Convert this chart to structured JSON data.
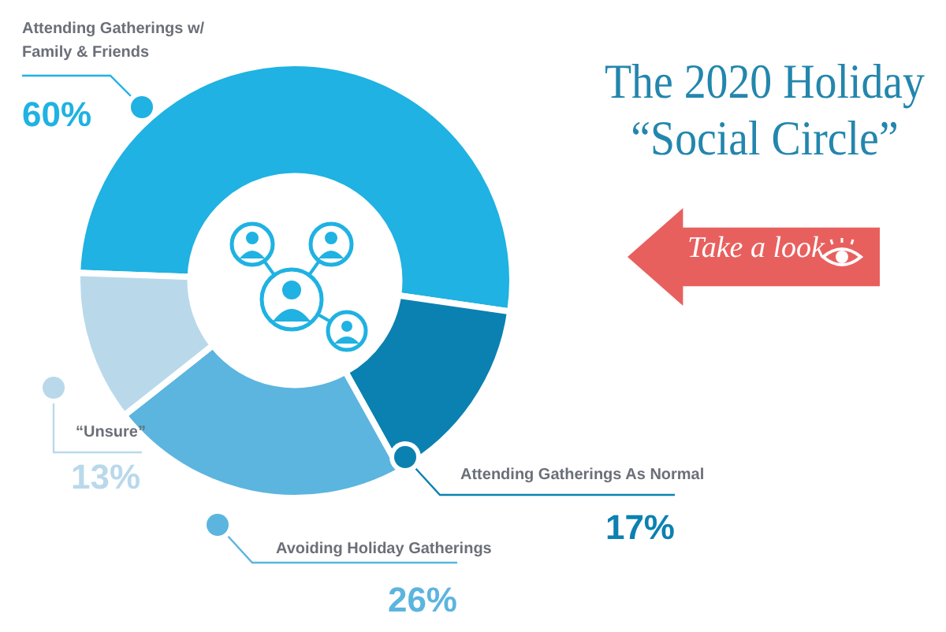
{
  "chart_data": {
    "type": "donut",
    "title": "The 2020 Holiday “Social Circle”",
    "categories": [
      "Attending Gatherings w/ Family & Friends",
      "Attending Gatherings As Normal",
      "Avoiding Holiday Gatherings",
      "“Unsure”"
    ],
    "values": [
      60,
      17,
      26,
      13
    ],
    "colors": [
      "#1fb2e2",
      "#0b81b1",
      "#5bb5df",
      "#b9d9eb"
    ],
    "value_labels": [
      "60%",
      "17%",
      "26%",
      "13%"
    ],
    "annotations": [
      "Take a look"
    ],
    "legend": false
  }
}
